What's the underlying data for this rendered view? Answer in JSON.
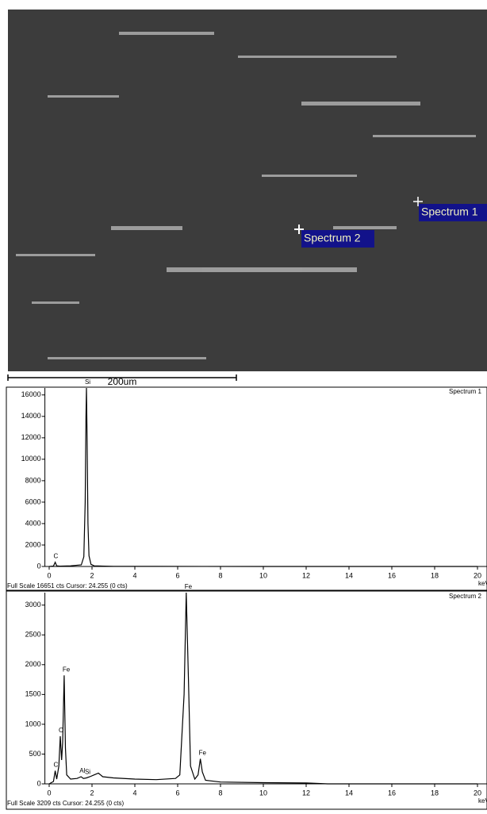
{
  "image": {
    "markers": [
      "Spectrum 1",
      "Spectrum 2"
    ],
    "scale_bar": "200um"
  },
  "chart_data": [
    {
      "type": "line",
      "title": "Spectrum 1",
      "x_label": "keV",
      "footer": "Full Scale 16651 cts Cursor: 24.255  (0 cts)",
      "xlim": [
        -0.2,
        20.5
      ],
      "xticks": [
        0,
        2,
        4,
        6,
        8,
        10,
        12,
        14,
        16,
        18,
        20
      ],
      "ylim": [
        0,
        16651
      ],
      "yticks": [
        0,
        2000,
        4000,
        6000,
        8000,
        10000,
        12000,
        14000,
        16000
      ],
      "color": "#000000",
      "x": [
        0,
        0.2,
        0.28,
        0.35,
        0.5,
        1.0,
        1.5,
        1.62,
        1.68,
        1.72,
        1.74,
        1.77,
        1.81,
        1.86,
        1.95,
        2.1,
        3,
        5,
        10,
        15,
        20
      ],
      "values": [
        0,
        40,
        400,
        60,
        30,
        60,
        150,
        900,
        6000,
        14000,
        16651,
        12000,
        4000,
        1000,
        200,
        60,
        10,
        5,
        0,
        0,
        0
      ],
      "annotations": [
        {
          "text": "C",
          "x": 0.28,
          "y": 400
        },
        {
          "text": "Si",
          "x": 1.74,
          "y": 16651
        }
      ]
    },
    {
      "type": "line",
      "title": "Spectrum 2",
      "x_label": "keV",
      "footer": "Full Scale 3209 cts Cursor: 24.255  (0 cts)",
      "xlim": [
        -0.2,
        20.5
      ],
      "xticks": [
        0,
        2,
        4,
        6,
        8,
        10,
        12,
        14,
        16,
        18,
        20
      ],
      "ylim": [
        0,
        3209
      ],
      "yticks": [
        0,
        500,
        1000,
        1500,
        2000,
        2500,
        3000
      ],
      "color": "#000000",
      "x": [
        0,
        0.2,
        0.28,
        0.35,
        0.45,
        0.52,
        0.58,
        0.63,
        0.7,
        0.76,
        0.82,
        1.0,
        1.3,
        1.49,
        1.6,
        1.74,
        1.9,
        2.1,
        2.3,
        2.5,
        3,
        4,
        5,
        5.9,
        6.1,
        6.3,
        6.4,
        6.5,
        6.6,
        6.8,
        6.95,
        7.06,
        7.15,
        7.3,
        8,
        10,
        12,
        13,
        15,
        20
      ],
      "values": [
        0,
        40,
        220,
        80,
        300,
        800,
        400,
        700,
        1820,
        600,
        150,
        80,
        90,
        120,
        90,
        100,
        120,
        150,
        180,
        120,
        100,
        80,
        70,
        90,
        150,
        1500,
        3209,
        1800,
        300,
        80,
        150,
        420,
        200,
        60,
        30,
        20,
        15,
        0,
        0,
        0
      ],
      "annotations": [
        {
          "text": "C",
          "x": 0.28,
          "y": 220
        },
        {
          "text": "O",
          "x": 0.52,
          "y": 800
        },
        {
          "text": "Fe",
          "x": 0.7,
          "y": 1820
        },
        {
          "text": "Al",
          "x": 1.49,
          "y": 120
        },
        {
          "text": "Si",
          "x": 1.74,
          "y": 100
        },
        {
          "text": "Fe",
          "x": 6.4,
          "y": 3209
        },
        {
          "text": "Fe",
          "x": 7.06,
          "y": 420
        }
      ]
    }
  ]
}
